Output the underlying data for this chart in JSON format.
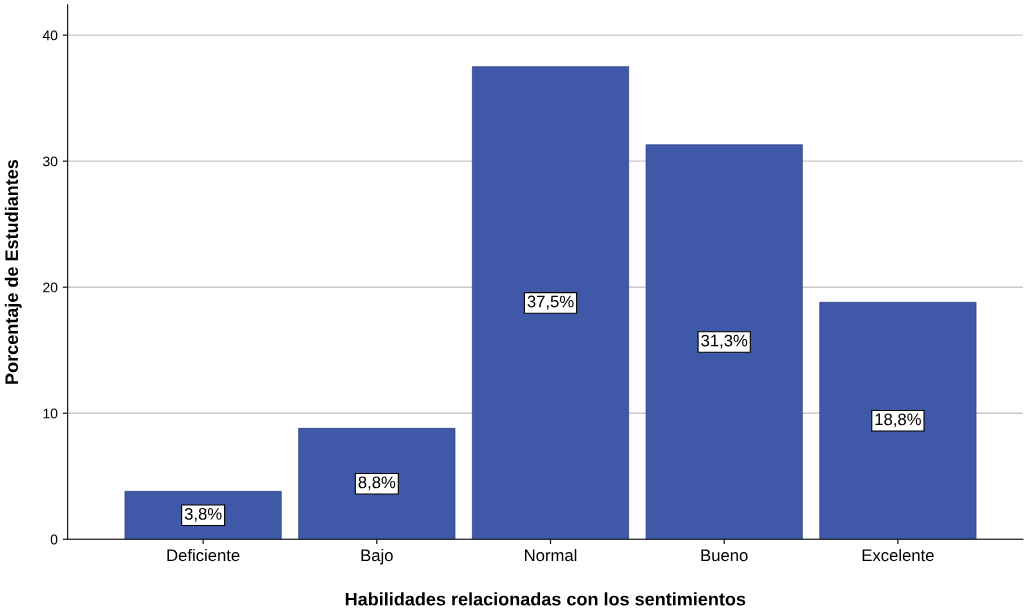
{
  "chart_data": {
    "type": "bar",
    "xlabel": "Habilidades relacionadas con los sentimientos",
    "ylabel": "Porcentaje de Estudiantes",
    "categories": [
      "Deficiente",
      "Bajo",
      "Normal",
      "Bueno",
      "Excelente"
    ],
    "values": [
      3.8,
      8.8,
      37.5,
      31.3,
      18.8
    ],
    "value_labels": [
      "3,8%",
      "8,8%",
      "37,5%",
      "31,3%",
      "18,8%"
    ],
    "color": "#3f59a8",
    "ylim": [
      0,
      42.4
    ],
    "yticks": [
      0,
      10,
      20,
      30,
      40
    ],
    "grid": "y",
    "legend": false
  }
}
